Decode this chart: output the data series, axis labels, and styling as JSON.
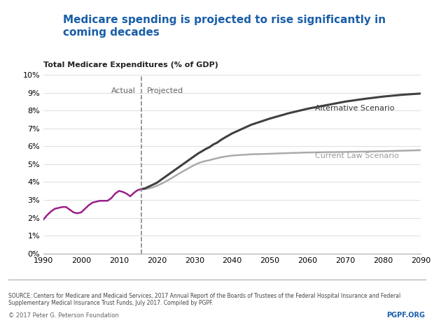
{
  "title": "Medicare spending is projected to rise significantly in\ncoming decades",
  "subtitle": "Total Medicare Expenditures (% of GDP)",
  "actual_label": "Actual",
  "projected_label": "Projected",
  "alt_label": "Alternative Scenario",
  "current_label": "Current Law Scenario",
  "divider_year": 2016,
  "xlim": [
    1990,
    2090
  ],
  "ylim": [
    0,
    10
  ],
  "yticks": [
    0,
    1,
    2,
    3,
    4,
    5,
    6,
    7,
    8,
    9,
    10
  ],
  "xticks": [
    1990,
    2000,
    2010,
    2020,
    2030,
    2040,
    2050,
    2060,
    2070,
    2080,
    2090
  ],
  "actual_color": "#9B1F8A",
  "alt_color": "#404040",
  "current_color": "#AAAAAA",
  "source_text": "SOURCE: Centers for Medicare and Medicaid Services, 2017 Annual Report of the Boards of Trustees of the Federal Hospital Insurance and Federal\nSupplementary Medical Insurance Trust Funds, July 2017. Compiled by PGPF.",
  "footer_left": "© 2017 Peter G. Peterson Foundation",
  "footer_right": "PGPF.ORG",
  "header_bg": "#ffffff",
  "actual_data_x": [
    1990,
    1991,
    1992,
    1993,
    1994,
    1995,
    1996,
    1997,
    1998,
    1999,
    2000,
    2001,
    2002,
    2003,
    2004,
    2005,
    2006,
    2007,
    2008,
    2009,
    2010,
    2011,
    2012,
    2013,
    2014,
    2015,
    2016
  ],
  "actual_data_y": [
    1.9,
    2.15,
    2.35,
    2.5,
    2.55,
    2.6,
    2.6,
    2.45,
    2.3,
    2.25,
    2.3,
    2.5,
    2.7,
    2.85,
    2.9,
    2.95,
    2.95,
    2.95,
    3.1,
    3.35,
    3.5,
    3.45,
    3.35,
    3.2,
    3.4,
    3.55,
    3.6
  ],
  "proj_x": [
    2016,
    2017,
    2018,
    2019,
    2020,
    2021,
    2022,
    2023,
    2024,
    2025,
    2026,
    2027,
    2028,
    2029,
    2030,
    2031,
    2032,
    2033,
    2034,
    2035,
    2036,
    2037,
    2038,
    2039,
    2040,
    2045,
    2050,
    2055,
    2060,
    2065,
    2070,
    2075,
    2080,
    2085,
    2090
  ],
  "alt_data_y": [
    3.6,
    3.65,
    3.75,
    3.85,
    3.95,
    4.1,
    4.25,
    4.4,
    4.55,
    4.7,
    4.85,
    5.0,
    5.15,
    5.3,
    5.45,
    5.6,
    5.72,
    5.85,
    5.95,
    6.1,
    6.2,
    6.35,
    6.48,
    6.6,
    6.72,
    7.2,
    7.55,
    7.85,
    8.1,
    8.3,
    8.5,
    8.65,
    8.78,
    8.88,
    8.95
  ],
  "current_data_y": [
    3.6,
    3.6,
    3.65,
    3.7,
    3.78,
    3.88,
    3.98,
    4.1,
    4.22,
    4.35,
    4.48,
    4.6,
    4.72,
    4.84,
    4.95,
    5.05,
    5.12,
    5.18,
    5.22,
    5.28,
    5.33,
    5.38,
    5.42,
    5.45,
    5.48,
    5.55,
    5.58,
    5.62,
    5.65,
    5.67,
    5.68,
    5.7,
    5.72,
    5.75,
    5.78
  ]
}
